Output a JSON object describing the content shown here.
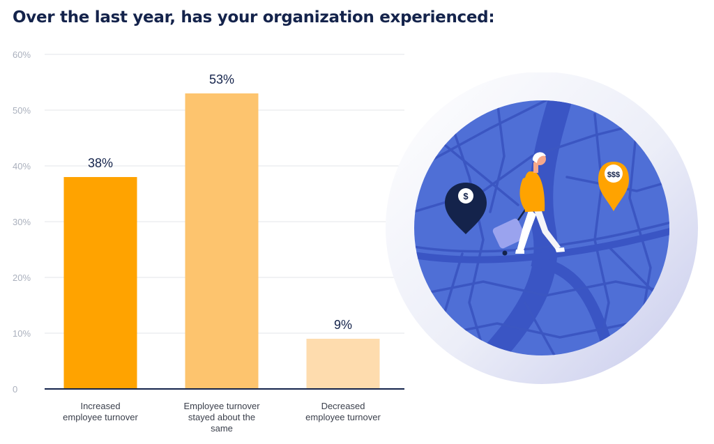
{
  "title": "Over the last year, has your organization experienced:",
  "chart_data": {
    "type": "bar",
    "categories": [
      [
        "Increased",
        "employee turnover"
      ],
      [
        "Employee turnover",
        "stayed about the",
        "same"
      ],
      [
        "Decreased",
        "employee turnover"
      ]
    ],
    "values": [
      38,
      53,
      9
    ],
    "data_labels": [
      "38%",
      "53%",
      "9%"
    ],
    "bar_colors": [
      "#ffa300",
      "#fdc46e",
      "#fedcae"
    ],
    "ylim": [
      0,
      60
    ],
    "yticks": [
      0,
      10,
      20,
      30,
      40,
      50,
      60
    ],
    "ytick_labels": [
      "0",
      "10%",
      "20%",
      "30%",
      "40%",
      "50%",
      "60%"
    ],
    "grid": true,
    "legend": "none"
  },
  "colors": {
    "title": "#14234b",
    "axis": "#14234b",
    "tick_label": "#aab0bd",
    "category_label": "#3a3f4b",
    "grid": "#e3e6ea",
    "map_blue": "#4f6fd6",
    "pin_dark": "#14234b",
    "pin_orange": "#ffa300"
  },
  "illustration": {
    "pin_dark_symbol": "$",
    "pin_orange_symbol": "$$$"
  }
}
